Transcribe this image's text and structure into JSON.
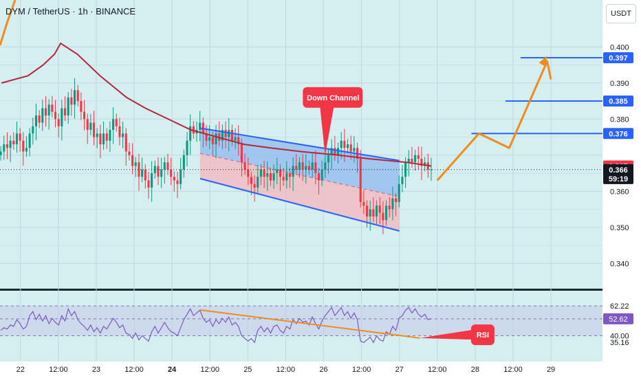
{
  "header": {
    "title": "DYM / TetherUS · 1h · BINANCE",
    "currency": "USDT"
  },
  "colors": {
    "up": "#089981",
    "down": "#f23645",
    "ma": "#b2283b",
    "channel": "#2962ff",
    "channel_fill_upper": "#8fb9f0",
    "channel_fill_lower": "#f2b9c1",
    "projection": "#f08c1a",
    "rsi_line": "#7e57c2",
    "annotation": "#f23645",
    "label_blue": "#2962ff",
    "label_red": "#f23645",
    "label_black": "#131722"
  },
  "chart_data": {
    "type": "candlestick",
    "symbol": "DYM / TetherUS",
    "interval": "1h",
    "exchange": "BINANCE",
    "ylim": [
      0.333,
      0.413
    ],
    "yticks": [
      0.34,
      0.35,
      0.36,
      0.37,
      0.38,
      0.39,
      0.4
    ],
    "xlim": [
      21.73,
      29.68
    ],
    "x_ticks": [
      {
        "x": 22,
        "label": "22"
      },
      {
        "x": 22.5,
        "label": "12:00"
      },
      {
        "x": 23,
        "label": "23"
      },
      {
        "x": 23.5,
        "label": "12:00"
      },
      {
        "x": 24,
        "label": "24"
      },
      {
        "x": 24.5,
        "label": "12:00"
      },
      {
        "x": 25,
        "label": "25"
      },
      {
        "x": 25.5,
        "label": "12:00"
      },
      {
        "x": 26,
        "label": "26"
      },
      {
        "x": 26.5,
        "label": "12:00"
      },
      {
        "x": 27,
        "label": "27"
      },
      {
        "x": 27.5,
        "label": "12:00"
      },
      {
        "x": 28,
        "label": "28"
      },
      {
        "x": 28.5,
        "label": "12:00"
      },
      {
        "x": 29,
        "label": "29"
      }
    ],
    "close": [
      0.371,
      0.373,
      0.372,
      0.374,
      0.373,
      0.376,
      0.374,
      0.371,
      0.372,
      0.376,
      0.378,
      0.381,
      0.379,
      0.383,
      0.381,
      0.384,
      0.382,
      0.38,
      0.378,
      0.383,
      0.381,
      0.386,
      0.384,
      0.388,
      0.385,
      0.382,
      0.38,
      0.377,
      0.379,
      0.375,
      0.376,
      0.373,
      0.376,
      0.374,
      0.377,
      0.38,
      0.378,
      0.375,
      0.376,
      0.371,
      0.37,
      0.367,
      0.368,
      0.364,
      0.366,
      0.363,
      0.361,
      0.365,
      0.367,
      0.364,
      0.366,
      0.368,
      0.366,
      0.364,
      0.363,
      0.362,
      0.366,
      0.37,
      0.374,
      0.378,
      0.376,
      0.377,
      0.379,
      0.376,
      0.374,
      0.375,
      0.373,
      0.376,
      0.374,
      0.377,
      0.375,
      0.377,
      0.374,
      0.375,
      0.373,
      0.368,
      0.366,
      0.364,
      0.362,
      0.361,
      0.364,
      0.366,
      0.364,
      0.365,
      0.363,
      0.365,
      0.366,
      0.364,
      0.363,
      0.365,
      0.364,
      0.367,
      0.366,
      0.368,
      0.366,
      0.367,
      0.366,
      0.368,
      0.365,
      0.363,
      0.366,
      0.368,
      0.37,
      0.372,
      0.37,
      0.372,
      0.374,
      0.372,
      0.373,
      0.371,
      0.372,
      0.369,
      0.357,
      0.356,
      0.353,
      0.355,
      0.353,
      0.356,
      0.354,
      0.352,
      0.356,
      0.355,
      0.358,
      0.357,
      0.362,
      0.364,
      0.368,
      0.369,
      0.368,
      0.37,
      0.369,
      0.367,
      0.368,
      0.366,
      0.366
    ],
    "ma": [
      0.39,
      0.392,
      0.395,
      0.398,
      0.401,
      0.398,
      0.392,
      0.386,
      0.383,
      0.38,
      0.377,
      0.375,
      0.373,
      0.372,
      0.371,
      0.37,
      0.369,
      0.368,
      0.367
    ],
    "ma_x": [
      21.75,
      22.1,
      22.3,
      22.45,
      22.53,
      22.75,
      23.05,
      23.4,
      23.65,
      23.95,
      24.25,
      24.6,
      24.95,
      25.3,
      25.7,
      26.2,
      26.6,
      27.1,
      27.42
    ],
    "channel": {
      "upper": [
        [
          24.37,
          0.3775
        ],
        [
          27.0,
          0.3685
        ]
      ],
      "lower": [
        [
          24.37,
          0.3635
        ],
        [
          27.0,
          0.349
        ]
      ],
      "mid": [
        [
          24.37,
          0.3705
        ],
        [
          27.0,
          0.3585
        ]
      ]
    },
    "annotations": [
      {
        "label": "Down Channel",
        "x": 26.08,
        "y": 0.386,
        "point_to": [
          26.02,
          0.37
        ]
      },
      {
        "label": "RSI",
        "pane": "rsi",
        "x": 28.1,
        "y": 40.2,
        "point_to": [
          27.27,
          38.3
        ]
      }
    ],
    "projection": [
      [
        27.5,
        0.363
      ],
      [
        28.05,
        0.376
      ],
      [
        28.45,
        0.372
      ],
      [
        28.95,
        0.396
      ],
      [
        29.0,
        0.391
      ]
    ],
    "targets": [
      {
        "value": 0.376,
        "x_from": 27.95
      },
      {
        "value": 0.385,
        "x_from": 28.4
      },
      {
        "value": 0.397,
        "x_from": 28.6
      }
    ],
    "price_labels": [
      {
        "text": "0.400",
        "value": 0.4
      },
      {
        "text": "0.397",
        "value": 0.397,
        "style": "blue"
      },
      {
        "text": "0.390",
        "value": 0.39
      },
      {
        "text": "0.385",
        "value": 0.385,
        "style": "blue"
      },
      {
        "text": "0.380",
        "value": 0.38
      },
      {
        "text": "0.376",
        "value": 0.376,
        "style": "blue"
      },
      {
        "text": "0.367",
        "value": 0.367,
        "style": "red"
      },
      {
        "text": "0.366",
        "value": 0.366,
        "style": "black"
      },
      {
        "text": "59:19",
        "value": 0.3635,
        "style": "black"
      },
      {
        "text": "0.360",
        "value": 0.36
      },
      {
        "text": "0.350",
        "value": 0.35
      },
      {
        "text": "0.340",
        "value": 0.34
      }
    ],
    "rsi": {
      "ylim": [
        28,
        72
      ],
      "yticks": [
        62.22,
        52.62,
        40.0,
        35.16
      ],
      "values": [
        44,
        46,
        45,
        48,
        47,
        52,
        49,
        45,
        47,
        55,
        58,
        52,
        56,
        51,
        55,
        49,
        53,
        50,
        48,
        55,
        51,
        60,
        55,
        58,
        52,
        49,
        47,
        44,
        48,
        43,
        46,
        42,
        47,
        45,
        49,
        53,
        50,
        46,
        48,
        42,
        41,
        38,
        42,
        37,
        40,
        38,
        36,
        43,
        47,
        42,
        46,
        50,
        46,
        43,
        42,
        40,
        46,
        52,
        56,
        60,
        55,
        57,
        59,
        53,
        50,
        52,
        47,
        52,
        49,
        53,
        50,
        54,
        48,
        50,
        47,
        40,
        38,
        36,
        38,
        35,
        44,
        47,
        43,
        46,
        42,
        47,
        48,
        44,
        42,
        47,
        45,
        52,
        49,
        53,
        50,
        51,
        48,
        54,
        49,
        45,
        51,
        55,
        58,
        61,
        55,
        58,
        61,
        55,
        58,
        53,
        57,
        52,
        36,
        35,
        37,
        39,
        35,
        40,
        37,
        36,
        43,
        41,
        47,
        44,
        53,
        55,
        59,
        61,
        57,
        60,
        56,
        54,
        56,
        52,
        52.6
      ],
      "divergence_line": [
        [
          24.37,
          59.2
        ],
        [
          27.27,
          38.3
        ]
      ],
      "bands": [
        62.22,
        52.62,
        40.0
      ]
    },
    "price_values_shown": {
      "current": "0.366",
      "countdown": "59:19",
      "ma_value": "0.367",
      "rsi_value": "52.62",
      "rsi_ma": "62.22"
    }
  }
}
